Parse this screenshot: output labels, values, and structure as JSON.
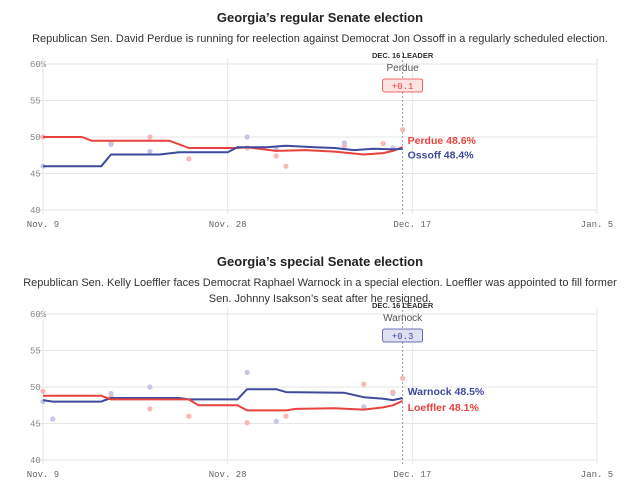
{
  "chart_data": [
    {
      "type": "line",
      "title": "Georgia’s regular Senate election",
      "subtitle": "Republican Sen. David Perdue is running for reelection against Democrat Jon Ossoff in a regularly scheduled election.",
      "ylim": [
        40,
        60
      ],
      "yticks": [
        "60%",
        "55",
        "50",
        "45",
        "40"
      ],
      "ytick_values": [
        60,
        55,
        50,
        45,
        40
      ],
      "x_range_days": [
        0,
        57
      ],
      "xticks": [
        {
          "day": 0,
          "label": "Nov. 9"
        },
        {
          "day": 19,
          "label": "Nov. 28"
        },
        {
          "day": 38,
          "label": "Dec. 17"
        },
        {
          "day": 57,
          "label": "Jan. 5"
        }
      ],
      "today_day": 37,
      "leader": {
        "heading": "DEC. 16 LEADER",
        "name": "Perdue",
        "margin": "+0.1",
        "color": "#e8423f",
        "fill": "#fde3e2"
      },
      "series": [
        {
          "name": "Perdue",
          "label": "Perdue 48.6%",
          "color": "#e8423f",
          "dot_color": "#f6b7b5",
          "x": [
            0,
            4,
            5,
            7,
            13,
            15,
            20,
            21,
            24,
            27,
            30,
            33,
            35,
            36,
            37
          ],
          "y": [
            50,
            50,
            49.5,
            49.5,
            49.5,
            48.5,
            48.5,
            48.6,
            48.1,
            48.2,
            48.0,
            47.6,
            47.8,
            48.1,
            48.6
          ],
          "dots": [
            [
              0,
              50
            ],
            [
              7,
              49.2
            ],
            [
              11,
              50
            ],
            [
              15,
              47
            ],
            [
              21,
              48.5
            ],
            [
              24,
              47.4
            ],
            [
              25,
              46
            ],
            [
              31,
              48.8
            ],
            [
              35,
              49.1
            ],
            [
              37,
              51
            ]
          ]
        },
        {
          "name": "Ossoff",
          "label": "Ossoff 48.4%",
          "color": "#3f4a9e",
          "dot_color": "#c5c5ea",
          "x": [
            0,
            6,
            7,
            12,
            14,
            19,
            20,
            23,
            25,
            28,
            30,
            32,
            34,
            36,
            37
          ],
          "y": [
            46,
            46,
            47.6,
            47.6,
            47.9,
            47.9,
            48.6,
            48.6,
            48.8,
            48.6,
            48.5,
            48.2,
            48.4,
            48.3,
            48.4
          ],
          "dots": [
            [
              0,
              46
            ],
            [
              7,
              49
            ],
            [
              11,
              48
            ],
            [
              21,
              50
            ],
            [
              24,
              48.3
            ],
            [
              31,
              49.2
            ],
            [
              36,
              48.5
            ]
          ]
        }
      ]
    },
    {
      "type": "line",
      "title": "Georgia’s special Senate election",
      "subtitle": "Republican Sen. Kelly Loeffler faces Democrat Raphael Warnock in a special election. Loeffler was appointed to fill former Sen. Johnny Isakson’s seat after he resigned.",
      "ylim": [
        40,
        60
      ],
      "yticks": [
        "60%",
        "55",
        "50",
        "45",
        "40"
      ],
      "ytick_values": [
        60,
        55,
        50,
        45,
        40
      ],
      "x_range_days": [
        0,
        57
      ],
      "xticks": [
        {
          "day": 0,
          "label": "Nov. 9"
        },
        {
          "day": 19,
          "label": "Nov. 28"
        },
        {
          "day": 38,
          "label": "Dec. 17"
        },
        {
          "day": 57,
          "label": "Jan. 5"
        }
      ],
      "today_day": 37,
      "leader": {
        "heading": "DEC. 16 LEADER",
        "name": "Warnock",
        "margin": "+0.3",
        "color": "#3f4a9e",
        "fill": "#dfe1f3"
      },
      "series": [
        {
          "name": "Warnock",
          "label": "Warnock 48.5%",
          "color": "#3f4a9e",
          "dot_color": "#c5c5ea",
          "x": [
            0,
            1,
            6,
            7,
            14,
            15,
            20,
            21,
            24,
            25,
            31,
            33,
            35,
            36,
            37
          ],
          "y": [
            48.2,
            48,
            48,
            48.5,
            48.5,
            48.3,
            48.3,
            49.7,
            49.7,
            49.3,
            49.2,
            48.6,
            48.4,
            48.2,
            48.5
          ],
          "dots": [
            [
              0,
              48
            ],
            [
              1,
              45.6
            ],
            [
              7,
              49.1
            ],
            [
              11,
              50
            ],
            [
              21,
              52
            ],
            [
              24,
              45.3
            ],
            [
              33,
              47.3
            ],
            [
              36,
              49.1
            ]
          ]
        },
        {
          "name": "Loeffler",
          "label": "Loeffler 48.1%",
          "color": "#e8423f",
          "dot_color": "#f6b7b5",
          "x": [
            0,
            6,
            7,
            15,
            16,
            20,
            21,
            25,
            26,
            30,
            33,
            35,
            36,
            37
          ],
          "y": [
            48.8,
            48.8,
            48.3,
            48.3,
            47.5,
            47.5,
            46.8,
            46.8,
            47.0,
            47.1,
            46.9,
            47.2,
            47.5,
            48.1
          ],
          "dots": [
            [
              0,
              49.4
            ],
            [
              7,
              48.6
            ],
            [
              11,
              47
            ],
            [
              15,
              46
            ],
            [
              21,
              45.1
            ],
            [
              25,
              46
            ],
            [
              33,
              50.4
            ],
            [
              36,
              49.3
            ],
            [
              37,
              51.2
            ]
          ]
        }
      ]
    }
  ]
}
